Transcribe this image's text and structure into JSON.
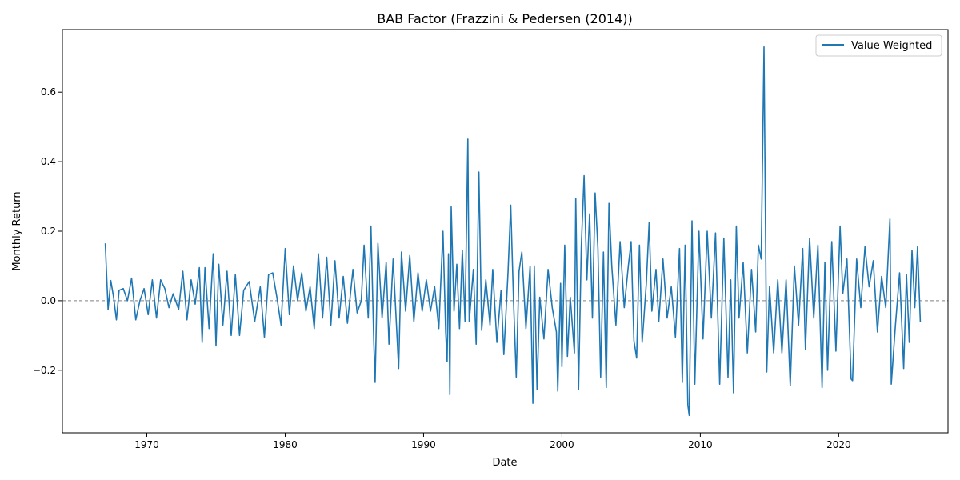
{
  "chart_data": {
    "type": "line",
    "title": "BAB Factor (Frazzini & Pedersen (2014))",
    "xlabel": "Date",
    "ylabel": "Monthly Return",
    "xlim": [
      1963.9,
      2027.9
    ],
    "ylim": [
      -0.38,
      0.78
    ],
    "x_ticks": [
      1970,
      1980,
      1990,
      2000,
      2010,
      2020
    ],
    "y_ticks": [
      -0.2,
      0.0,
      0.2,
      0.4,
      0.6
    ],
    "y_tick_labels": [
      "−0.2",
      "0.0",
      "0.2",
      "0.4",
      "0.6"
    ],
    "grid": false,
    "legend_position": "top-right",
    "reference_line": {
      "y": 0.0,
      "style": "dashed",
      "color": "#808080"
    },
    "colors": {
      "series": "#1f77b4",
      "axes": "#000000"
    },
    "series": [
      {
        "name": "Value Weighted",
        "points": [
          [
            1967.0,
            0.165
          ],
          [
            1967.2,
            -0.025
          ],
          [
            1967.4,
            0.058
          ],
          [
            1967.6,
            0.01
          ],
          [
            1967.8,
            -0.055
          ],
          [
            1968.0,
            0.03
          ],
          [
            1968.3,
            0.035
          ],
          [
            1968.6,
            0.0
          ],
          [
            1968.9,
            0.065
          ],
          [
            1969.2,
            -0.055
          ],
          [
            1969.5,
            0.0
          ],
          [
            1969.8,
            0.035
          ],
          [
            1970.1,
            -0.04
          ],
          [
            1970.4,
            0.06
          ],
          [
            1970.7,
            -0.05
          ],
          [
            1971.0,
            0.06
          ],
          [
            1971.3,
            0.035
          ],
          [
            1971.6,
            -0.02
          ],
          [
            1971.9,
            0.02
          ],
          [
            1972.3,
            -0.025
          ],
          [
            1972.6,
            0.085
          ],
          [
            1972.9,
            -0.055
          ],
          [
            1973.2,
            0.06
          ],
          [
            1973.5,
            -0.01
          ],
          [
            1973.8,
            0.095
          ],
          [
            1974.0,
            -0.12
          ],
          [
            1974.2,
            0.095
          ],
          [
            1974.5,
            -0.08
          ],
          [
            1974.8,
            0.135
          ],
          [
            1975.0,
            -0.13
          ],
          [
            1975.2,
            0.105
          ],
          [
            1975.5,
            -0.07
          ],
          [
            1975.8,
            0.085
          ],
          [
            1976.1,
            -0.1
          ],
          [
            1976.4,
            0.075
          ],
          [
            1976.7,
            -0.1
          ],
          [
            1977.0,
            0.03
          ],
          [
            1977.4,
            0.055
          ],
          [
            1977.8,
            -0.06
          ],
          [
            1978.2,
            0.04
          ],
          [
            1978.5,
            -0.105
          ],
          [
            1978.8,
            0.075
          ],
          [
            1979.1,
            0.08
          ],
          [
            1979.4,
            0.01
          ],
          [
            1979.7,
            -0.07
          ],
          [
            1980.0,
            0.15
          ],
          [
            1980.3,
            -0.04
          ],
          [
            1980.6,
            0.1
          ],
          [
            1980.9,
            0.0
          ],
          [
            1981.2,
            0.08
          ],
          [
            1981.5,
            -0.03
          ],
          [
            1981.8,
            0.04
          ],
          [
            1982.1,
            -0.08
          ],
          [
            1982.4,
            0.135
          ],
          [
            1982.7,
            -0.05
          ],
          [
            1983.0,
            0.125
          ],
          [
            1983.3,
            -0.07
          ],
          [
            1983.6,
            0.115
          ],
          [
            1983.9,
            -0.05
          ],
          [
            1984.2,
            0.07
          ],
          [
            1984.5,
            -0.065
          ],
          [
            1984.9,
            0.09
          ],
          [
            1985.2,
            -0.035
          ],
          [
            1985.5,
            0.0
          ],
          [
            1985.7,
            0.16
          ],
          [
            1986.0,
            -0.05
          ],
          [
            1986.2,
            0.215
          ],
          [
            1986.4,
            -0.115
          ],
          [
            1986.5,
            -0.235
          ],
          [
            1986.7,
            0.165
          ],
          [
            1987.0,
            -0.05
          ],
          [
            1987.3,
            0.11
          ],
          [
            1987.5,
            -0.125
          ],
          [
            1987.8,
            0.12
          ],
          [
            1988.2,
            -0.195
          ],
          [
            1988.4,
            0.14
          ],
          [
            1988.7,
            -0.03
          ],
          [
            1989.0,
            0.13
          ],
          [
            1989.3,
            -0.06
          ],
          [
            1989.6,
            0.08
          ],
          [
            1989.9,
            -0.03
          ],
          [
            1990.2,
            0.06
          ],
          [
            1990.5,
            -0.03
          ],
          [
            1990.8,
            0.04
          ],
          [
            1991.1,
            -0.08
          ],
          [
            1991.4,
            0.2
          ],
          [
            1991.6,
            -0.09
          ],
          [
            1991.7,
            -0.175
          ],
          [
            1991.8,
            0.135
          ],
          [
            1991.9,
            -0.27
          ],
          [
            1992.0,
            0.27
          ],
          [
            1992.2,
            -0.03
          ],
          [
            1992.4,
            0.105
          ],
          [
            1992.6,
            -0.08
          ],
          [
            1992.8,
            0.145
          ],
          [
            1993.0,
            -0.06
          ],
          [
            1993.2,
            0.465
          ],
          [
            1993.3,
            -0.06
          ],
          [
            1993.6,
            0.09
          ],
          [
            1993.8,
            -0.125
          ],
          [
            1994.0,
            0.37
          ],
          [
            1994.2,
            -0.085
          ],
          [
            1994.5,
            0.06
          ],
          [
            1994.8,
            -0.07
          ],
          [
            1995.0,
            0.09
          ],
          [
            1995.3,
            -0.12
          ],
          [
            1995.6,
            0.03
          ],
          [
            1995.8,
            -0.155
          ],
          [
            1996.1,
            0.08
          ],
          [
            1996.3,
            0.275
          ],
          [
            1996.5,
            0.0
          ],
          [
            1996.7,
            -0.22
          ],
          [
            1996.9,
            0.085
          ],
          [
            1997.1,
            0.14
          ],
          [
            1997.4,
            -0.08
          ],
          [
            1997.7,
            0.1
          ],
          [
            1997.9,
            -0.295
          ],
          [
            1998.0,
            0.1
          ],
          [
            1998.2,
            -0.255
          ],
          [
            1998.4,
            0.01
          ],
          [
            1998.7,
            -0.11
          ],
          [
            1999.0,
            0.09
          ],
          [
            1999.3,
            -0.02
          ],
          [
            1999.6,
            -0.09
          ],
          [
            1999.7,
            -0.26
          ],
          [
            1999.9,
            0.05
          ],
          [
            2000.0,
            -0.19
          ],
          [
            2000.2,
            0.16
          ],
          [
            2000.4,
            -0.16
          ],
          [
            2000.6,
            0.01
          ],
          [
            2000.9,
            -0.15
          ],
          [
            2001.0,
            0.295
          ],
          [
            2001.2,
            -0.255
          ],
          [
            2001.4,
            0.155
          ],
          [
            2001.6,
            0.36
          ],
          [
            2001.8,
            0.06
          ],
          [
            2002.0,
            0.25
          ],
          [
            2002.2,
            -0.05
          ],
          [
            2002.4,
            0.31
          ],
          [
            2002.6,
            0.15
          ],
          [
            2002.8,
            -0.22
          ],
          [
            2003.0,
            0.14
          ],
          [
            2003.2,
            -0.25
          ],
          [
            2003.4,
            0.28
          ],
          [
            2003.6,
            0.1
          ],
          [
            2003.9,
            -0.07
          ],
          [
            2004.2,
            0.17
          ],
          [
            2004.5,
            -0.02
          ],
          [
            2004.8,
            0.1
          ],
          [
            2005.0,
            0.17
          ],
          [
            2005.2,
            -0.115
          ],
          [
            2005.4,
            -0.165
          ],
          [
            2005.6,
            0.16
          ],
          [
            2005.8,
            -0.12
          ],
          [
            2006.1,
            0.05
          ],
          [
            2006.3,
            0.225
          ],
          [
            2006.5,
            -0.03
          ],
          [
            2006.8,
            0.09
          ],
          [
            2007.0,
            -0.06
          ],
          [
            2007.3,
            0.12
          ],
          [
            2007.6,
            -0.05
          ],
          [
            2007.9,
            0.04
          ],
          [
            2008.2,
            -0.105
          ],
          [
            2008.5,
            0.15
          ],
          [
            2008.7,
            -0.235
          ],
          [
            2008.9,
            0.16
          ],
          [
            2009.1,
            -0.3
          ],
          [
            2009.2,
            -0.33
          ],
          [
            2009.4,
            0.23
          ],
          [
            2009.6,
            -0.24
          ],
          [
            2009.9,
            0.2
          ],
          [
            2010.2,
            -0.11
          ],
          [
            2010.5,
            0.2
          ],
          [
            2010.8,
            -0.05
          ],
          [
            2011.1,
            0.195
          ],
          [
            2011.4,
            -0.24
          ],
          [
            2011.7,
            0.18
          ],
          [
            2012.0,
            -0.22
          ],
          [
            2012.2,
            0.06
          ],
          [
            2012.4,
            -0.265
          ],
          [
            2012.6,
            0.215
          ],
          [
            2012.8,
            -0.05
          ],
          [
            2013.1,
            0.11
          ],
          [
            2013.4,
            -0.15
          ],
          [
            2013.7,
            0.09
          ],
          [
            2014.0,
            -0.09
          ],
          [
            2014.2,
            0.16
          ],
          [
            2014.4,
            0.12
          ],
          [
            2014.6,
            0.73
          ],
          [
            2014.8,
            -0.205
          ],
          [
            2015.0,
            0.04
          ],
          [
            2015.3,
            -0.15
          ],
          [
            2015.6,
            0.06
          ],
          [
            2015.9,
            -0.15
          ],
          [
            2016.2,
            0.06
          ],
          [
            2016.5,
            -0.245
          ],
          [
            2016.8,
            0.1
          ],
          [
            2017.1,
            -0.07
          ],
          [
            2017.4,
            0.15
          ],
          [
            2017.6,
            -0.14
          ],
          [
            2017.9,
            0.18
          ],
          [
            2018.2,
            -0.05
          ],
          [
            2018.5,
            0.16
          ],
          [
            2018.8,
            -0.25
          ],
          [
            2019.0,
            0.11
          ],
          [
            2019.2,
            -0.2
          ],
          [
            2019.5,
            0.17
          ],
          [
            2019.8,
            -0.145
          ],
          [
            2020.1,
            0.215
          ],
          [
            2020.3,
            0.02
          ],
          [
            2020.6,
            0.12
          ],
          [
            2020.9,
            -0.225
          ],
          [
            2021.0,
            -0.23
          ],
          [
            2021.3,
            0.12
          ],
          [
            2021.6,
            -0.02
          ],
          [
            2021.9,
            0.155
          ],
          [
            2022.2,
            0.04
          ],
          [
            2022.5,
            0.115
          ],
          [
            2022.8,
            -0.09
          ],
          [
            2023.1,
            0.07
          ],
          [
            2023.4,
            -0.02
          ],
          [
            2023.7,
            0.235
          ],
          [
            2023.8,
            -0.24
          ],
          [
            2024.1,
            -0.07
          ],
          [
            2024.4,
            0.08
          ],
          [
            2024.7,
            -0.195
          ],
          [
            2024.9,
            0.075
          ],
          [
            2025.1,
            -0.12
          ],
          [
            2025.3,
            0.145
          ],
          [
            2025.5,
            -0.02
          ],
          [
            2025.7,
            0.155
          ],
          [
            2025.9,
            -0.06
          ]
        ]
      }
    ]
  }
}
